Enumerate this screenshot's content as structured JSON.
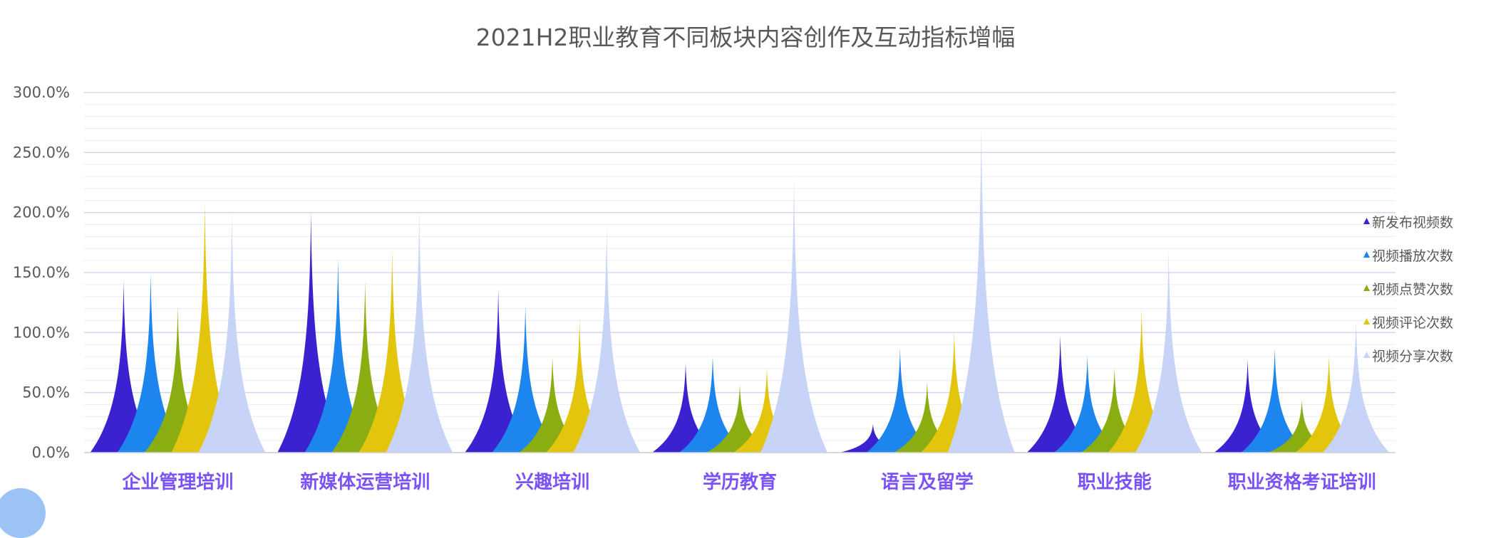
{
  "title": "2021H2职业教育不同板块内容创作及互动指标增幅",
  "chart_data": {
    "type": "bar",
    "title": "2021H2职业教育不同板块内容创作及互动指标增幅",
    "categories": [
      "企业管理培训",
      "新媒体运营培训",
      "兴趣培训",
      "学历教育",
      "语言及留学",
      "职业技能",
      "职业资格考证培训"
    ],
    "series": [
      {
        "name": "新发布视频数",
        "color": "#3a22d0",
        "values": [
          143,
          201,
          136,
          75,
          24,
          98,
          78
        ]
      },
      {
        "name": "视频播放次数",
        "color": "#1c86ee",
        "values": [
          150,
          162,
          123,
          81,
          87,
          81,
          87
        ]
      },
      {
        "name": "视频点赞次数",
        "color": "#8aad12",
        "values": [
          122,
          143,
          80,
          57,
          59,
          71,
          44
        ]
      },
      {
        "name": "视频评论次数",
        "color": "#e3c50d",
        "values": [
          209,
          170,
          112,
          71,
          101,
          120,
          81
        ]
      },
      {
        "name": "视频分享次数",
        "color": "#c8d4f7",
        "values": [
          200,
          203,
          189,
          229,
          275,
          170,
          111
        ]
      }
    ],
    "ylim": [
      0,
      300
    ],
    "yticks": [
      "0.0%",
      "50.0%",
      "100.0%",
      "150.0%",
      "200.0%",
      "250.0%",
      "300.0%"
    ],
    "legend": "right",
    "grid": true
  }
}
